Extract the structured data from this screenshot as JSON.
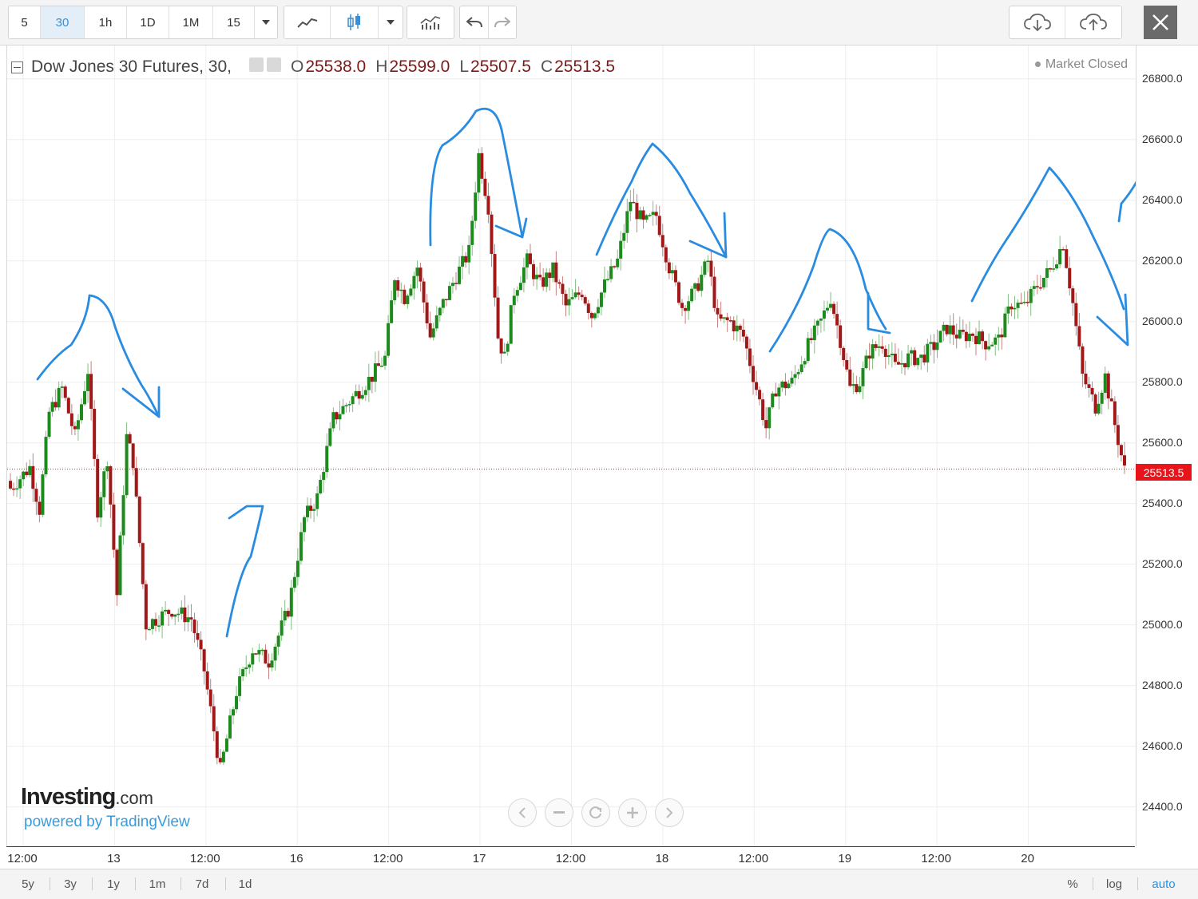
{
  "toolbar": {
    "intervals": [
      "5",
      "30",
      "1h",
      "1D",
      "1M",
      "15"
    ],
    "active_interval": "30",
    "icons": [
      "line-chart-icon",
      "candlestick-icon",
      "dropdown-arrow-icon",
      "indicators-icon",
      "undo-icon",
      "redo-icon",
      "cloud-download-icon",
      "cloud-upload-icon",
      "close-icon"
    ]
  },
  "legend": {
    "symbol": "Dow Jones 30 Futures, 30,",
    "open_label": "O",
    "open": "25538.0",
    "high_label": "H",
    "high": "25599.0",
    "low_label": "L",
    "low": "25507.5",
    "close_label": "C",
    "close": "25513.5"
  },
  "status": "Market Closed",
  "branding": {
    "logo": "Investing",
    "logo_suffix": ".com",
    "powered": "powered by TradingView"
  },
  "bottom_bar": {
    "ranges": [
      "5y",
      "3y",
      "1y",
      "1m",
      "7d",
      "1d"
    ],
    "percent": "%",
    "log": "log",
    "auto": "auto",
    "auto_color": "#2a8fd8"
  },
  "colors": {
    "up": "#1c8a1c",
    "down": "#a01818",
    "grid": "#eeeeee",
    "price_line": "#e8141a",
    "annotation": "#2a8ce0"
  },
  "chart_data": {
    "type": "candlestick",
    "symbol": "Dow Jones 30 Futures",
    "interval": "30",
    "y_ticks": [
      26800,
      26600,
      26400,
      26200,
      26000,
      25800,
      25600,
      25400,
      25200,
      25000,
      24800,
      24600,
      24400
    ],
    "y_tick_labels": [
      "26800.0",
      "26600.0",
      "26400.0",
      "26200.0",
      "26000.0",
      "25800.0",
      "25600.0",
      "25400.0",
      "25200.0",
      "25000.0",
      "24800.0",
      "24600.0",
      "24400.0"
    ],
    "ylim": [
      24270,
      26910
    ],
    "current_price": "25513.5",
    "x_labels": [
      "12:00",
      "13",
      "12:00",
      "16",
      "12:00",
      "17",
      "12:00",
      "18",
      "12:00",
      "19",
      "12:00",
      "20"
    ],
    "close_path": [
      [
        0,
        25450
      ],
      [
        6,
        25520
      ],
      [
        9,
        25380
      ],
      [
        12,
        25700
      ],
      [
        16,
        25780
      ],
      [
        20,
        25620
      ],
      [
        24,
        25840
      ],
      [
        27,
        25380
      ],
      [
        30,
        25550
      ],
      [
        33,
        25100
      ],
      [
        36,
        25620
      ],
      [
        38,
        25540
      ],
      [
        42,
        25000
      ],
      [
        50,
        25050
      ],
      [
        56,
        25020
      ],
      [
        60,
        24850
      ],
      [
        65,
        24520
      ],
      [
        70,
        24780
      ],
      [
        75,
        24920
      ],
      [
        80,
        24880
      ],
      [
        86,
        25050
      ],
      [
        91,
        25350
      ],
      [
        95,
        25420
      ],
      [
        100,
        25680
      ],
      [
        106,
        25750
      ],
      [
        112,
        25820
      ],
      [
        116,
        25880
      ],
      [
        119,
        26150
      ],
      [
        122,
        26080
      ],
      [
        126,
        26180
      ],
      [
        130,
        25950
      ],
      [
        134,
        26060
      ],
      [
        138,
        26150
      ],
      [
        142,
        26230
      ],
      [
        145,
        26550
      ],
      [
        148,
        26380
      ],
      [
        151,
        25950
      ],
      [
        153,
        25880
      ],
      [
        156,
        26100
      ],
      [
        160,
        26200
      ],
      [
        164,
        26120
      ],
      [
        168,
        26170
      ],
      [
        172,
        26050
      ],
      [
        177,
        26100
      ],
      [
        180,
        26020
      ],
      [
        184,
        26120
      ],
      [
        188,
        26200
      ],
      [
        192,
        26400
      ],
      [
        196,
        26320
      ],
      [
        200,
        26350
      ],
      [
        204,
        26180
      ],
      [
        208,
        26050
      ],
      [
        212,
        26100
      ],
      [
        216,
        26200
      ],
      [
        219,
        26000
      ],
      [
        223,
        26000
      ],
      [
        227,
        25950
      ],
      [
        231,
        25780
      ],
      [
        234,
        25650
      ],
      [
        237,
        25780
      ],
      [
        242,
        25800
      ],
      [
        247,
        25920
      ],
      [
        251,
        26000
      ],
      [
        254,
        26080
      ],
      [
        257,
        25940
      ],
      [
        260,
        25780
      ],
      [
        263,
        25800
      ],
      [
        266,
        25900
      ],
      [
        270,
        25930
      ],
      [
        274,
        25850
      ],
      [
        278,
        25880
      ],
      [
        282,
        25880
      ],
      [
        286,
        25920
      ],
      [
        290,
        25980
      ],
      [
        294,
        25950
      ],
      [
        298,
        25960
      ],
      [
        302,
        25930
      ],
      [
        306,
        25940
      ],
      [
        310,
        26060
      ],
      [
        314,
        26050
      ],
      [
        318,
        26120
      ],
      [
        322,
        26170
      ],
      [
        326,
        26260
      ],
      [
        329,
        26060
      ],
      [
        332,
        25820
      ],
      [
        336,
        25720
      ],
      [
        339,
        25820
      ],
      [
        342,
        25660
      ],
      [
        345,
        25510
      ]
    ]
  }
}
